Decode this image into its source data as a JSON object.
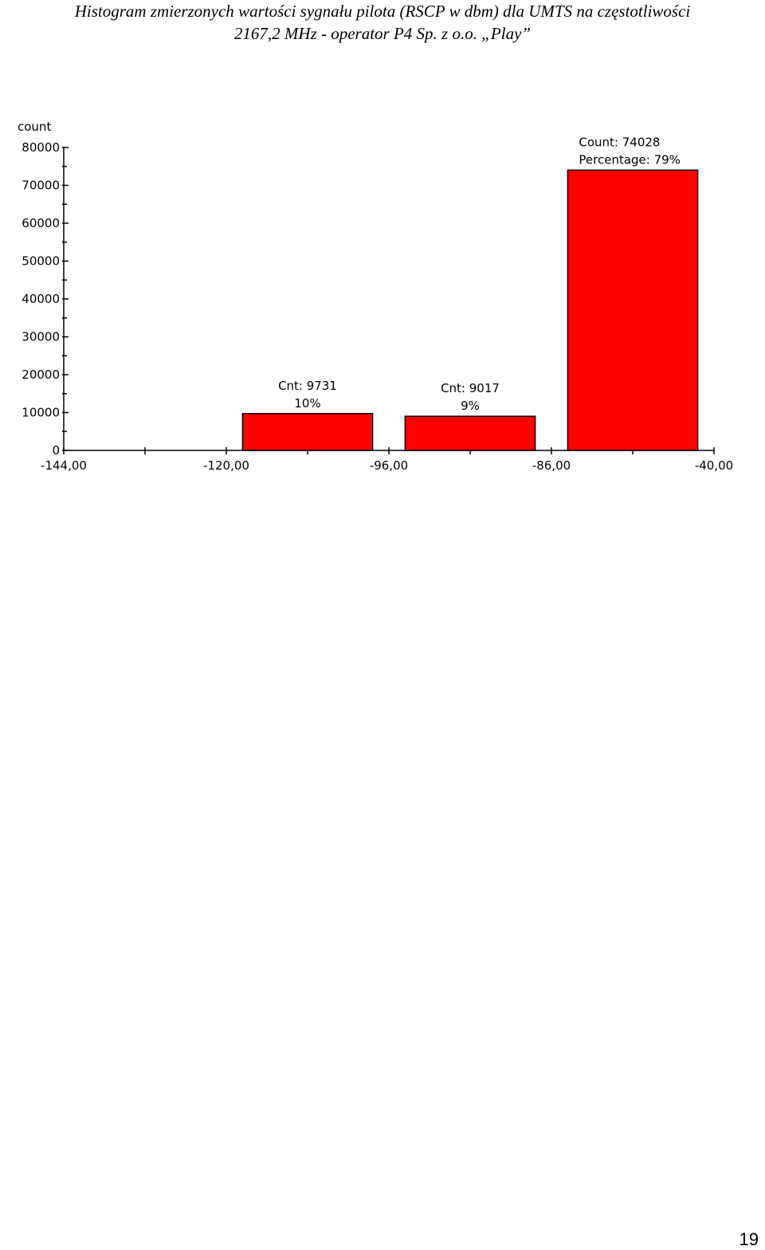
{
  "document": {
    "title_line1": "Histogram zmierzonych wartości sygnału pilota (RSCP w dbm) dla UMTS na częstotliwości",
    "title_line2": "2167,2 MHz - operator P4 Sp. z o.o. „Play”",
    "page_number": "19"
  },
  "chart_data": {
    "type": "bar",
    "ylabel": "count",
    "ylim": [
      0,
      80000
    ],
    "y_ticks": [
      "0",
      "10000",
      "20000",
      "30000",
      "40000",
      "50000",
      "60000",
      "70000",
      "80000"
    ],
    "x_edges": [
      "-144,00",
      "-120,00",
      "-96,00",
      "-86,00",
      "-40,00"
    ],
    "categories": [
      "-144,00 – -120,00",
      "-120,00 – -96,00",
      "-96,00 – -86,00",
      "-86,00 – -40,00"
    ],
    "values": [
      0,
      9731,
      9017,
      74028
    ],
    "bar_labels": [
      [],
      [
        "Cnt: 9731",
        "10%"
      ],
      [
        "Cnt: 9017",
        "9%"
      ],
      [
        "Count: 74028",
        "Percentage: 79%"
      ]
    ],
    "bar_color": "#ff0000",
    "grid": false
  }
}
